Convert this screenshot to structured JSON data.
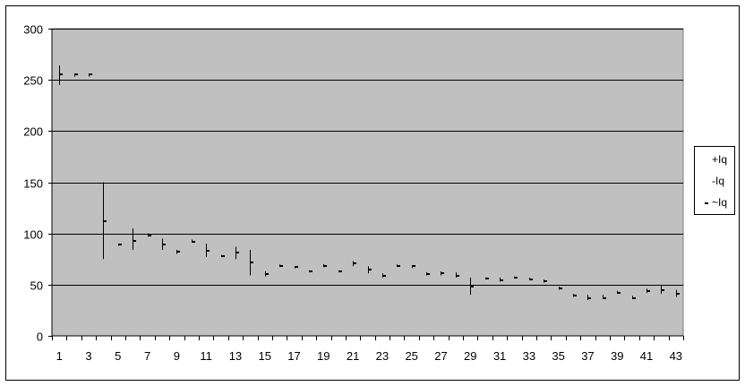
{
  "chart_data": {
    "type": "line",
    "subtype": "high-low-close",
    "title": "",
    "xlabel": "",
    "ylabel": "",
    "ylim": [
      0,
      300
    ],
    "yticks": [
      0,
      50,
      100,
      150,
      200,
      250,
      300
    ],
    "x": [
      1,
      2,
      3,
      4,
      5,
      6,
      7,
      8,
      9,
      10,
      11,
      12,
      13,
      14,
      15,
      16,
      17,
      18,
      19,
      20,
      21,
      22,
      23,
      24,
      25,
      26,
      27,
      28,
      29,
      30,
      31,
      32,
      33,
      34,
      35,
      36,
      37,
      38,
      39,
      40,
      41,
      42,
      43
    ],
    "x_tick_labels": [
      "1",
      "3",
      "5",
      "7",
      "9",
      "11",
      "13",
      "15",
      "17",
      "19",
      "21",
      "23",
      "25",
      "27",
      "29",
      "31",
      "33",
      "35",
      "37",
      "39",
      "41",
      "43"
    ],
    "grid": "horizontal major gridlines",
    "plot_background": "#c0c0c0",
    "legend_position": "right",
    "series": [
      {
        "name": "+Iq",
        "values": [
          264,
          255,
          255,
          150,
          90,
          105,
          100,
          95,
          84,
          94,
          90,
          79,
          87,
          84,
          63,
          69,
          68,
          64,
          70,
          64,
          73,
          68,
          61,
          69,
          68,
          62,
          63,
          62,
          57,
          57,
          57,
          58,
          56,
          55,
          48,
          41,
          40,
          40,
          44,
          39,
          46,
          49,
          45
        ]
      },
      {
        "name": "-Iq",
        "values": [
          245,
          254,
          254,
          75,
          88,
          84,
          97,
          84,
          80,
          91,
          77,
          77,
          75,
          59,
          58,
          68,
          66,
          62,
          67,
          62,
          68,
          61,
          57,
          68,
          67,
          59,
          59,
          57,
          40,
          55,
          53,
          56,
          55,
          52,
          45,
          38,
          35,
          36,
          41,
          36,
          42,
          41,
          38
        ]
      },
      {
        "name": "~Iq",
        "values": [
          255,
          255,
          255,
          112,
          89,
          93,
          98,
          89,
          82,
          92,
          83,
          78,
          81,
          72,
          60,
          68,
          67,
          63,
          68,
          63,
          71,
          65,
          59,
          68,
          68,
          60,
          61,
          59,
          48,
          56,
          54,
          57,
          55,
          53,
          46,
          39,
          37,
          37,
          42,
          37,
          44,
          45,
          41
        ]
      }
    ],
    "colors": {
      "bars": "#000000",
      "gridlines": "#000000",
      "plot_area": "#c0c0c0"
    }
  }
}
